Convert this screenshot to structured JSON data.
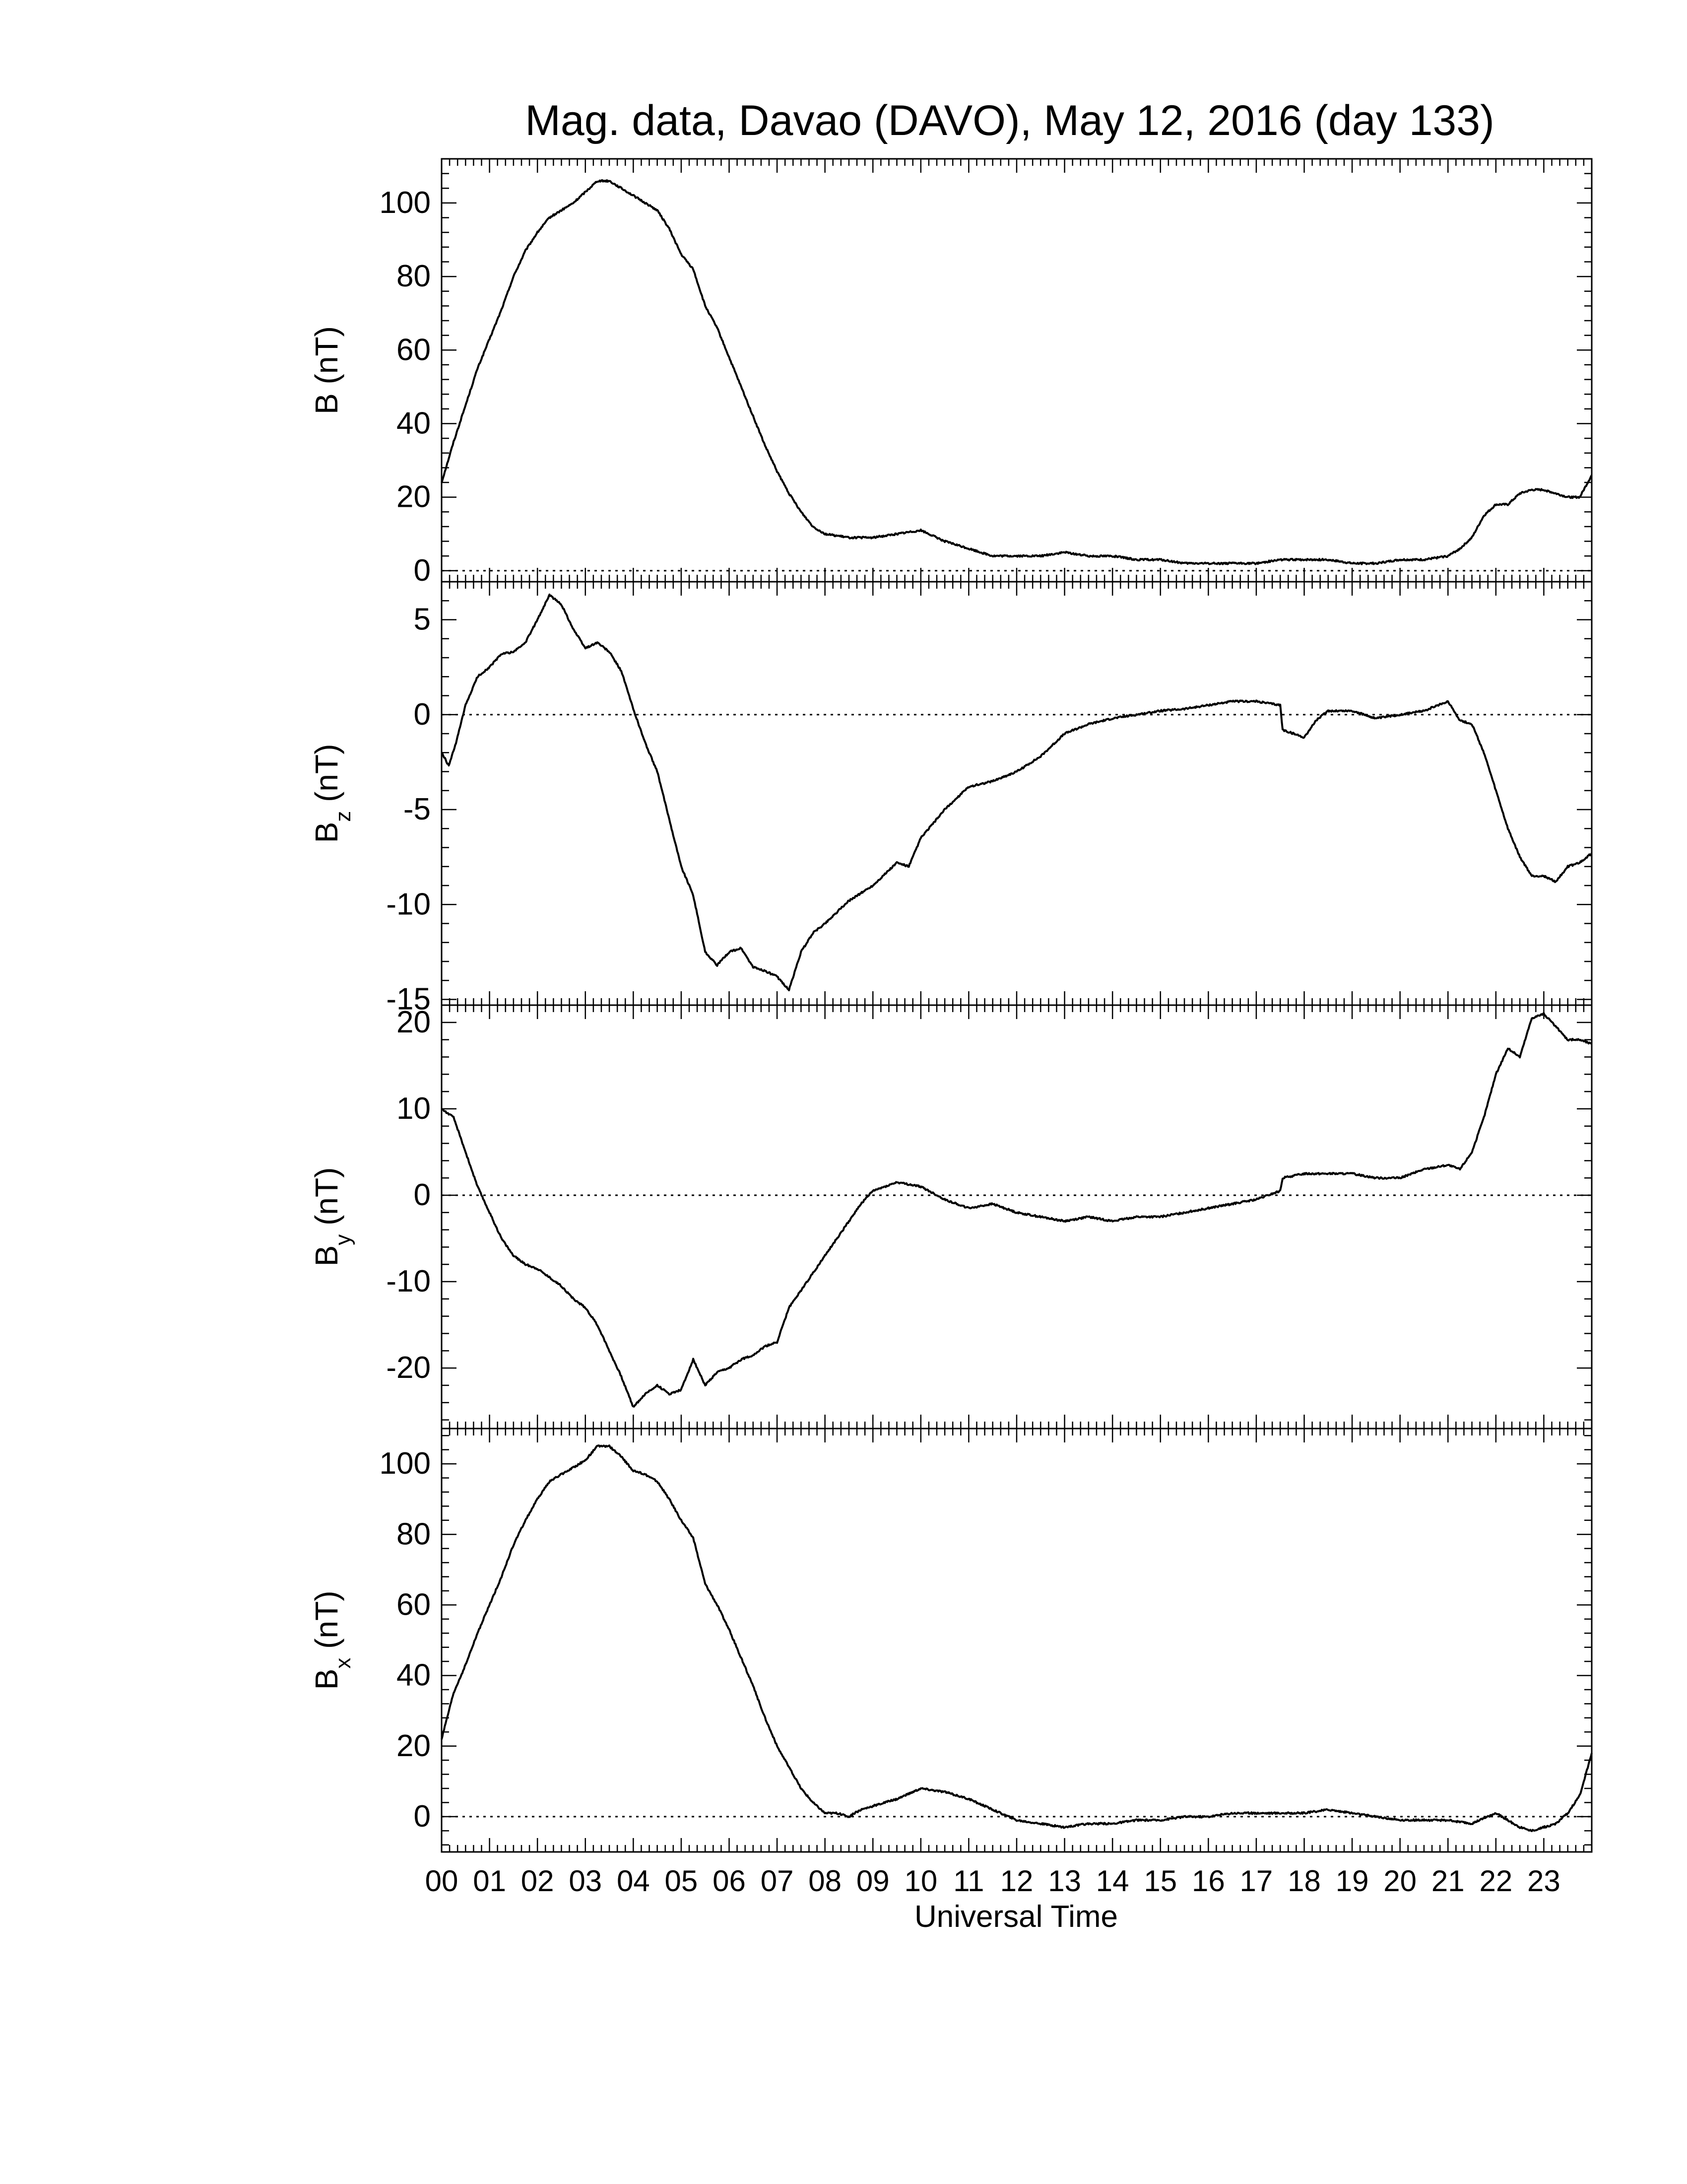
{
  "chart_data": {
    "title": "Mag. data, Davao (DAVO), May 12, 2016 (day 133)",
    "xlabel": "Universal Time",
    "x_unit": "hours UT",
    "xlim": [
      0,
      24
    ],
    "x_tick_labels": [
      "00",
      "01",
      "02",
      "03",
      "04",
      "05",
      "06",
      "07",
      "08",
      "09",
      "10",
      "11",
      "12",
      "13",
      "14",
      "15",
      "16",
      "17",
      "18",
      "19",
      "20",
      "21",
      "22",
      "23"
    ],
    "line_color": "#000000",
    "zero_line_style": "dotted",
    "panels": [
      {
        "type": "line",
        "ylabel_main": "B",
        "ylabel_sub": "",
        "ylabel_unit": "(nT)",
        "ylim": [
          -3,
          112
        ],
        "yticks": [
          0,
          20,
          40,
          60,
          80,
          100
        ],
        "zero_line": true,
        "x": [
          0,
          0.25,
          0.5,
          0.75,
          1,
          1.25,
          1.5,
          1.75,
          2,
          2.25,
          2.5,
          2.75,
          3,
          3.25,
          3.5,
          3.75,
          4,
          4.25,
          4.5,
          4.75,
          5,
          5.25,
          5.5,
          5.75,
          6,
          6.25,
          6.5,
          6.75,
          7,
          7.25,
          7.5,
          7.75,
          8,
          8.5,
          9,
          9.5,
          10,
          10.5,
          11,
          11.5,
          12,
          12.5,
          13,
          13.5,
          14,
          14.5,
          15,
          15.5,
          16,
          16.5,
          17,
          17.5,
          18,
          18.5,
          19,
          19.5,
          20,
          20.5,
          21,
          21.25,
          21.5,
          21.75,
          22,
          22.25,
          22.5,
          22.75,
          23,
          23.25,
          23.5,
          23.75,
          24
        ],
        "y": [
          24,
          35,
          45,
          55,
          63,
          71,
          80,
          87,
          92,
          96,
          98,
          100,
          103,
          106,
          106,
          104,
          102,
          100,
          98,
          93,
          86,
          82,
          72,
          66,
          58,
          50,
          42,
          34,
          27,
          21,
          16,
          12,
          10,
          9,
          9,
          10,
          11,
          8,
          6,
          4,
          4,
          4,
          5,
          4,
          4,
          3,
          3,
          2,
          2,
          2,
          2,
          3,
          3,
          3,
          2,
          2,
          3,
          3,
          4,
          6,
          9,
          15,
          18,
          18,
          21,
          22,
          22,
          21,
          20,
          20,
          26
        ]
      },
      {
        "type": "line",
        "ylabel_main": "B",
        "ylabel_sub": "z",
        "ylabel_unit": "(nT)",
        "ylim": [
          -15.3,
          7
        ],
        "yticks": [
          5,
          0,
          -5,
          -10,
          -15
        ],
        "zero_line": true,
        "x": [
          0,
          0.15,
          0.3,
          0.5,
          0.75,
          1,
          1.25,
          1.5,
          1.75,
          2,
          2.25,
          2.5,
          2.75,
          3,
          3.25,
          3.5,
          3.75,
          4,
          4.25,
          4.5,
          4.75,
          5,
          5.25,
          5.5,
          5.75,
          6,
          6.25,
          6.5,
          6.75,
          7,
          7.25,
          7.5,
          7.75,
          8,
          8.5,
          9,
          9.5,
          9.75,
          10,
          10.5,
          11,
          11.5,
          12,
          12.5,
          13,
          13.5,
          14,
          14.5,
          15,
          15.5,
          16,
          16.5,
          17,
          17.5,
          17.55,
          18,
          18.25,
          18.5,
          19,
          19.5,
          20,
          20.5,
          21,
          21.25,
          21.5,
          21.75,
          22,
          22.25,
          22.5,
          22.75,
          23,
          23.25,
          23.5,
          23.75,
          24
        ],
        "y": [
          -2.0,
          -2.7,
          -1.5,
          0.5,
          2.0,
          2.5,
          3.2,
          3.3,
          3.8,
          5.0,
          6.3,
          5.8,
          4.5,
          3.5,
          3.8,
          3.3,
          2.3,
          0.3,
          -1.5,
          -3.0,
          -5.5,
          -8.0,
          -9.5,
          -12.5,
          -13.2,
          -12.5,
          -12.3,
          -13.3,
          -13.5,
          -13.8,
          -14.5,
          -12.5,
          -11.5,
          -11.0,
          -9.8,
          -9.0,
          -7.8,
          -8.0,
          -6.5,
          -5.0,
          -3.8,
          -3.5,
          -3.0,
          -2.2,
          -1.0,
          -0.5,
          -0.2,
          0.0,
          0.2,
          0.3,
          0.5,
          0.7,
          0.7,
          0.5,
          -0.8,
          -1.2,
          -0.3,
          0.2,
          0.2,
          -0.2,
          0.0,
          0.2,
          0.7,
          -0.3,
          -0.5,
          -2.0,
          -4.0,
          -6.0,
          -7.5,
          -8.5,
          -8.5,
          -8.8,
          -8.0,
          -7.8,
          -7.3
        ]
      },
      {
        "type": "line",
        "ylabel_main": "B",
        "ylabel_sub": "y",
        "ylabel_unit": "(nT)",
        "ylim": [
          -27,
          22
        ],
        "yticks": [
          20,
          10,
          0,
          -10,
          -20
        ],
        "zero_line": true,
        "x": [
          0,
          0.25,
          0.5,
          0.75,
          1,
          1.25,
          1.5,
          1.75,
          2,
          2.25,
          2.5,
          2.75,
          3,
          3.25,
          3.5,
          3.75,
          4,
          4.25,
          4.5,
          4.75,
          5,
          5.25,
          5.5,
          5.75,
          6,
          6.25,
          6.5,
          6.75,
          7,
          7.25,
          7.5,
          7.75,
          8,
          8.25,
          8.5,
          8.75,
          9,
          9.5,
          10,
          10.5,
          11,
          11.5,
          12,
          12.5,
          13,
          13.5,
          14,
          14.5,
          15,
          15.5,
          16,
          16.5,
          17,
          17.5,
          17.55,
          18,
          18.5,
          19,
          19.5,
          20,
          20.5,
          21,
          21.25,
          21.5,
          21.75,
          22,
          22.25,
          22.5,
          22.75,
          23,
          23.25,
          23.5,
          23.75,
          24
        ],
        "y": [
          10,
          9,
          5,
          1,
          -2,
          -5,
          -7,
          -8,
          -8.5,
          -9.5,
          -10.5,
          -12,
          -13,
          -15,
          -18,
          -21,
          -24.5,
          -23,
          -22,
          -23,
          -22.5,
          -19,
          -22,
          -20.5,
          -20,
          -19,
          -18.5,
          -17.5,
          -17,
          -13,
          -11,
          -9,
          -7,
          -5,
          -3,
          -1,
          0.5,
          1.5,
          1,
          -0.5,
          -1.5,
          -1,
          -2,
          -2.5,
          -3,
          -2.5,
          -3,
          -2.5,
          -2.5,
          -2,
          -1.5,
          -1,
          -0.5,
          0.5,
          2,
          2.5,
          2.5,
          2.5,
          2,
          2,
          3,
          3.5,
          3,
          5,
          9,
          14,
          17,
          16,
          20.5,
          21,
          19.5,
          18,
          18,
          17.5
        ]
      },
      {
        "type": "line",
        "ylabel_main": "B",
        "ylabel_sub": "x",
        "ylabel_unit": "(nT)",
        "ylim": [
          -10,
          110
        ],
        "yticks": [
          0,
          20,
          40,
          60,
          80,
          100
        ],
        "zero_line": true,
        "x": [
          0,
          0.25,
          0.5,
          0.75,
          1,
          1.25,
          1.5,
          1.75,
          2,
          2.25,
          2.5,
          2.75,
          3,
          3.25,
          3.5,
          3.75,
          4,
          4.25,
          4.5,
          4.75,
          5,
          5.25,
          5.5,
          5.75,
          6,
          6.25,
          6.5,
          6.75,
          7,
          7.25,
          7.5,
          7.75,
          8,
          8.25,
          8.5,
          8.75,
          9,
          9.5,
          10,
          10.5,
          11,
          11.5,
          12,
          12.5,
          13,
          13.5,
          14,
          14.5,
          15,
          15.5,
          16,
          16.5,
          17,
          17.5,
          18,
          18.5,
          19,
          19.5,
          20,
          20.5,
          21,
          21.5,
          22,
          22.25,
          22.5,
          22.75,
          23,
          23.25,
          23.5,
          23.75,
          24
        ],
        "y": [
          22,
          35,
          43,
          52,
          60,
          68,
          77,
          84,
          90,
          95,
          97,
          99,
          101,
          105,
          105,
          102,
          98,
          97,
          95,
          90,
          84,
          79,
          66,
          60,
          53,
          45,
          37,
          28,
          20,
          14,
          8,
          4,
          1,
          1,
          0,
          2,
          3,
          5,
          8,
          7,
          5,
          2,
          -1,
          -2,
          -3,
          -2,
          -2,
          -1,
          -1,
          0,
          0,
          1,
          1,
          1,
          1,
          2,
          1,
          0,
          -1,
          -1,
          -1,
          -2,
          1,
          -1,
          -3,
          -4,
          -3,
          -2,
          1,
          6,
          18
        ]
      }
    ]
  }
}
